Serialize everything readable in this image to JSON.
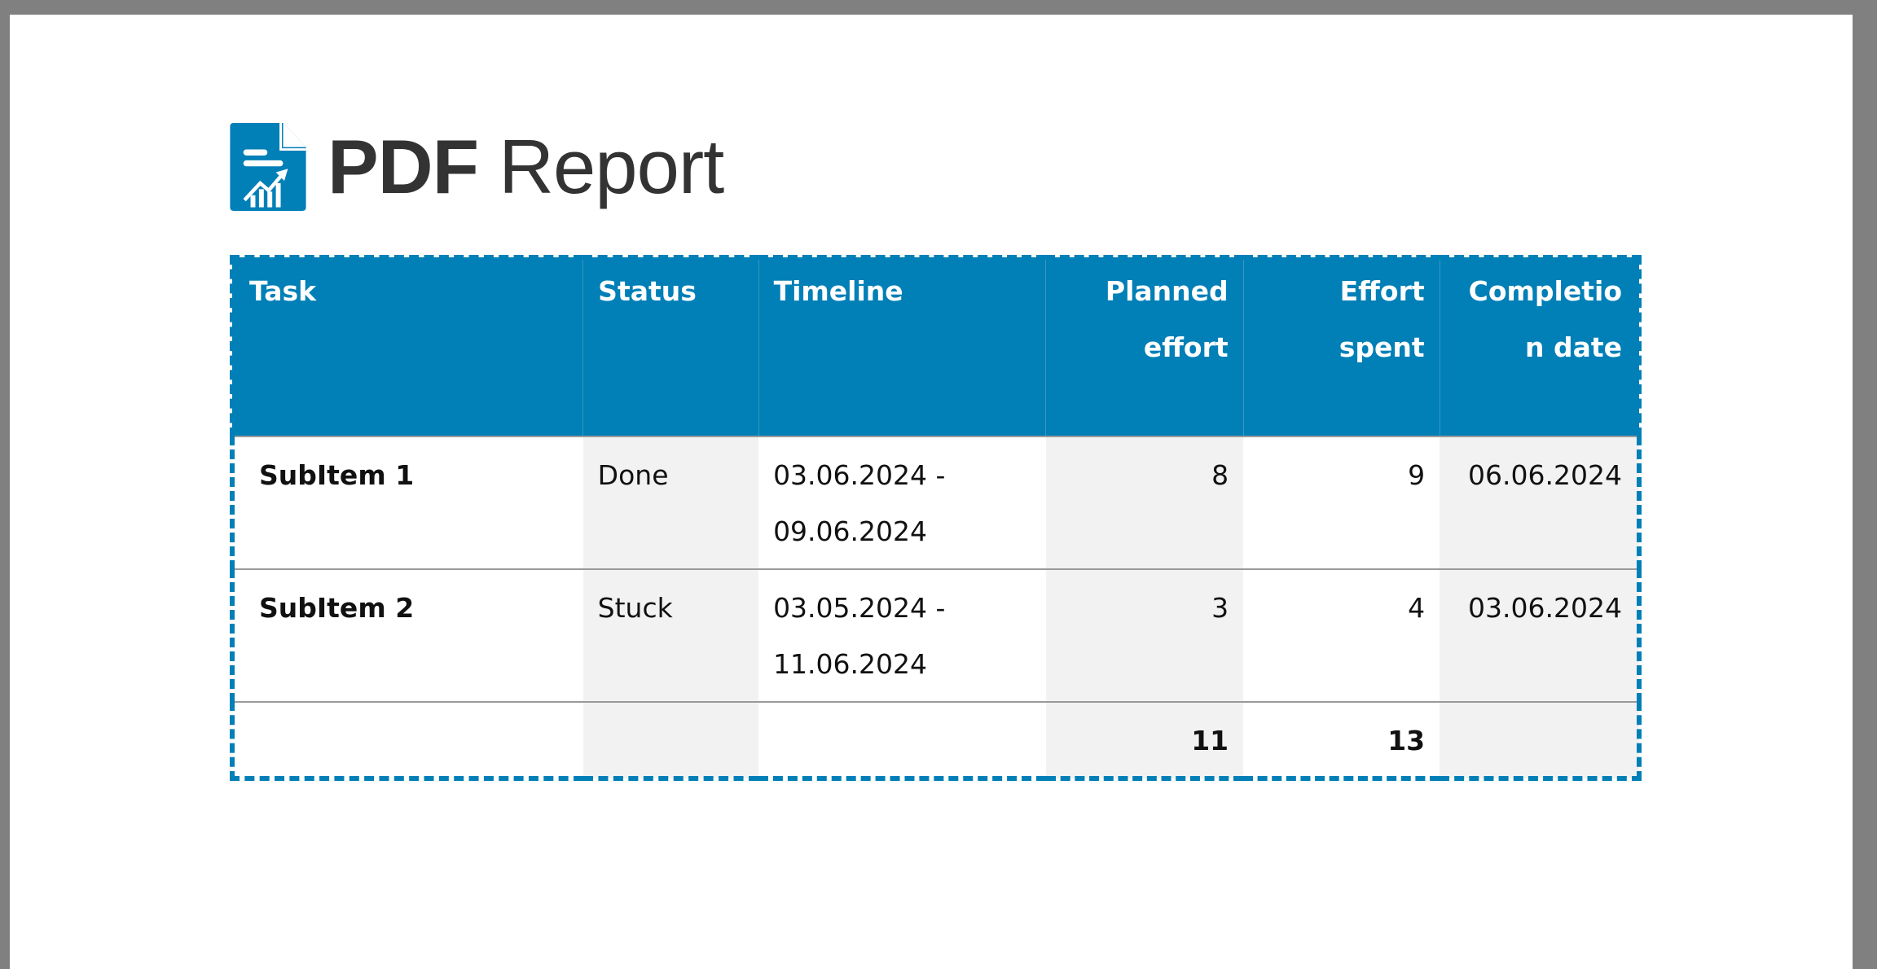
{
  "logo": {
    "text_bold": "PDF",
    "text_light": "Report",
    "icon": "document-chart-icon",
    "color": "#017fb7"
  },
  "table": {
    "headers": [
      "Task",
      "Status",
      "Timeline",
      "Planned effort",
      "Effort spent",
      "Completion date"
    ],
    "rows": [
      {
        "task": "SubItem 1",
        "status": "Done",
        "timeline_start": "03.06.2024 -",
        "timeline_end": "09.06.2024",
        "planned": "8",
        "spent": "9",
        "completion": "06.06.2024"
      },
      {
        "task": "SubItem 2",
        "status": "Stuck",
        "timeline_start": "03.05.2024 -",
        "timeline_end": "11.06.2024",
        "planned": "3",
        "spent": "4",
        "completion": "03.06.2024"
      }
    ],
    "totals": {
      "planned": "11",
      "spent": "13"
    },
    "header_color": "#017fb7"
  }
}
